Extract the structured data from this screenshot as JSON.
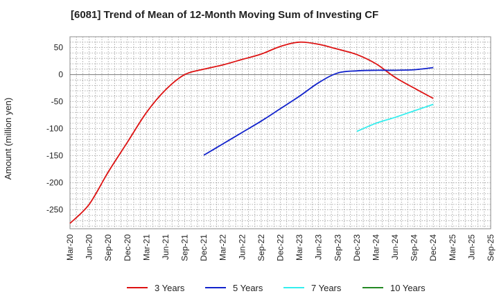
{
  "chart_data": {
    "type": "line",
    "title": "[6081]  Trend of Mean of 12-Month Moving Sum of Investing CF",
    "xlabel": "",
    "ylabel": "Amount (million yen)",
    "ylim": [
      -285,
      70
    ],
    "yticks": [
      50,
      0,
      -50,
      -100,
      -150,
      -200,
      -250
    ],
    "xticks": [
      "Mar-20",
      "Jun-20",
      "Sep-20",
      "Dec-20",
      "Mar-21",
      "Jun-21",
      "Sep-21",
      "Dec-21",
      "Mar-22",
      "Jun-22",
      "Sep-22",
      "Dec-22",
      "Mar-23",
      "Jun-23",
      "Sep-23",
      "Dec-23",
      "Mar-24",
      "Jun-24",
      "Sep-24",
      "Dec-24",
      "Mar-25",
      "Jun-25",
      "Sep-25"
    ],
    "grid": true,
    "legend_position": "bottom",
    "series": [
      {
        "name": "3 Years",
        "color": "#dd1111",
        "points": [
          [
            "Mar-20",
            -275
          ],
          [
            "Jun-20",
            -240
          ],
          [
            "Sep-20",
            -180
          ],
          [
            "Dec-20",
            -125
          ],
          [
            "Mar-21",
            -70
          ],
          [
            "Jun-21",
            -28
          ],
          [
            "Sep-21",
            0
          ],
          [
            "Dec-21",
            10
          ],
          [
            "Mar-22",
            18
          ],
          [
            "Jun-22",
            28
          ],
          [
            "Sep-22",
            38
          ],
          [
            "Dec-22",
            52
          ],
          [
            "Mar-23",
            60
          ],
          [
            "Jun-23",
            56
          ],
          [
            "Sep-23",
            47
          ],
          [
            "Dec-23",
            37
          ],
          [
            "Mar-24",
            20
          ],
          [
            "Jun-24",
            -5
          ],
          [
            "Sep-24",
            -25
          ],
          [
            "Dec-24",
            -44
          ]
        ]
      },
      {
        "name": "5 Years",
        "color": "#1122cc",
        "points": [
          [
            "Dec-21",
            -149
          ],
          [
            "Mar-22",
            -128
          ],
          [
            "Jun-22",
            -107
          ],
          [
            "Sep-22",
            -86
          ],
          [
            "Dec-22",
            -63
          ],
          [
            "Mar-23",
            -40
          ],
          [
            "Jun-23",
            -15
          ],
          [
            "Sep-23",
            3
          ],
          [
            "Dec-23",
            7
          ],
          [
            "Mar-24",
            8
          ],
          [
            "Jun-24",
            8
          ],
          [
            "Sep-24",
            9
          ],
          [
            "Dec-24",
            13
          ]
        ]
      },
      {
        "name": "7 Years",
        "color": "#33eeee",
        "points": [
          [
            "Dec-23",
            -105
          ],
          [
            "Mar-24",
            -90
          ],
          [
            "Jun-24",
            -79
          ],
          [
            "Sep-24",
            -67
          ],
          [
            "Dec-24",
            -55
          ]
        ]
      },
      {
        "name": "10 Years",
        "color": "#228822",
        "points": []
      }
    ]
  }
}
